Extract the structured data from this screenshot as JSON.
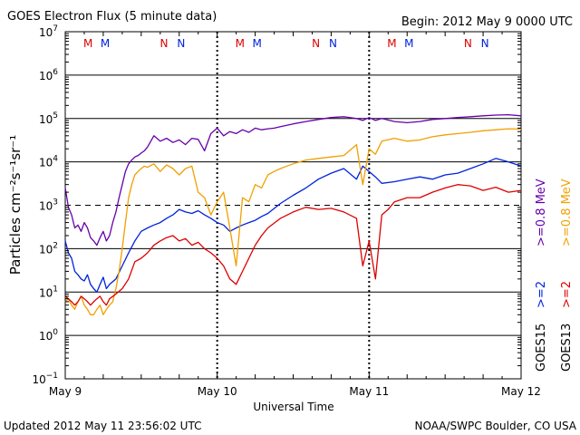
{
  "chart_data": {
    "type": "line",
    "title": "GOES Electron Flux (5 minute data)",
    "begin_label": "Begin: 2012 May 9 0000 UTC",
    "xlabel": "Universal Time",
    "ylabel": "Particles cm⁻²s⁻¹sr⁻¹",
    "y_scale": "log",
    "ylim": [
      0.1,
      10000000
    ],
    "y_ticks": [
      {
        "base": "10",
        "exp": "7",
        "value": 10000000
      },
      {
        "base": "10",
        "exp": "6",
        "value": 1000000
      },
      {
        "base": "10",
        "exp": "5",
        "value": 100000
      },
      {
        "base": "10",
        "exp": "4",
        "value": 10000
      },
      {
        "base": "10",
        "exp": "3",
        "value": 1000
      },
      {
        "base": "10",
        "exp": "2",
        "value": 100
      },
      {
        "base": "10",
        "exp": "1",
        "value": 10
      },
      {
        "base": "10",
        "exp": "0",
        "value": 1
      },
      {
        "base": "10",
        "exp": "−1",
        "value": 0.1
      }
    ],
    "x_unit": "hours since 2012 May 9 0000 UTC",
    "xlim": [
      0,
      72
    ],
    "x_ticks": [
      {
        "label": "May 9",
        "value": 0
      },
      {
        "label": "May 10",
        "value": 24
      },
      {
        "label": "May 11",
        "value": 48
      },
      {
        "label": "May 12",
        "value": 72
      }
    ],
    "threshold": 1000,
    "markers": [
      {
        "letter": "M",
        "sat": "GOES13",
        "color": "#dd0000",
        "x": 3.6
      },
      {
        "letter": "M",
        "sat": "GOES15",
        "color": "#0022dd",
        "x": 6.3
      },
      {
        "letter": "N",
        "sat": "GOES13",
        "color": "#dd0000",
        "x": 15.6
      },
      {
        "letter": "N",
        "sat": "GOES15",
        "color": "#0022dd",
        "x": 18.3
      },
      {
        "letter": "M",
        "sat": "GOES13",
        "color": "#dd0000",
        "x": 27.6
      },
      {
        "letter": "M",
        "sat": "GOES15",
        "color": "#0022dd",
        "x": 30.3
      },
      {
        "letter": "N",
        "sat": "GOES13",
        "color": "#dd0000",
        "x": 39.6
      },
      {
        "letter": "N",
        "sat": "GOES15",
        "color": "#0022dd",
        "x": 42.3
      },
      {
        "letter": "M",
        "sat": "GOES13",
        "color": "#dd0000",
        "x": 51.6
      },
      {
        "letter": "M",
        "sat": "GOES15",
        "color": "#0022dd",
        "x": 54.3
      },
      {
        "letter": "N",
        "sat": "GOES13",
        "color": "#dd0000",
        "x": 63.6
      },
      {
        "letter": "N",
        "sat": "GOES15",
        "color": "#0022dd",
        "x": 66.3
      }
    ],
    "series": [
      {
        "name": ">=0.8 MeV",
        "satellite": "GOES15",
        "color": "#6600aa",
        "x": [
          0,
          0.5,
          1,
          1.5,
          2,
          2.5,
          3,
          3.5,
          4,
          4.5,
          5,
          5.5,
          6,
          6.5,
          7,
          7.5,
          8,
          8.5,
          9,
          9.5,
          10,
          10.5,
          11,
          11.5,
          12,
          12.5,
          13,
          14,
          15,
          16,
          17,
          18,
          19,
          20,
          21,
          22,
          23,
          24,
          25,
          26,
          27,
          28,
          29,
          30,
          31,
          32,
          33,
          34,
          35,
          36,
          38,
          40,
          42,
          44,
          46,
          47,
          48,
          49,
          50,
          52,
          54,
          56,
          58,
          60,
          62,
          64,
          66,
          68,
          70,
          72
        ],
        "y": [
          2500,
          900,
          600,
          300,
          350,
          250,
          400,
          300,
          180,
          150,
          120,
          180,
          250,
          150,
          200,
          400,
          700,
          1500,
          3000,
          6000,
          9000,
          11000,
          13000,
          14000,
          16000,
          18000,
          22000,
          40000,
          30000,
          35000,
          28000,
          32000,
          25000,
          35000,
          33000,
          18000,
          45000,
          60000,
          40000,
          50000,
          45000,
          55000,
          48000,
          60000,
          55000,
          58000,
          60000,
          65000,
          70000,
          75000,
          85000,
          95000,
          105000,
          110000,
          100000,
          90000,
          105000,
          90000,
          100000,
          85000,
          80000,
          85000,
          95000,
          100000,
          105000,
          110000,
          115000,
          120000,
          122000,
          115000
        ]
      },
      {
        "name": ">=2 MeV",
        "satellite": "GOES15",
        "color": "#0022dd",
        "x": [
          0,
          0.5,
          1,
          1.5,
          2,
          2.5,
          3,
          3.5,
          4,
          4.5,
          5,
          5.5,
          6,
          6.5,
          7,
          8,
          9,
          10,
          11,
          12,
          13,
          14,
          15,
          16,
          17,
          18,
          19,
          20,
          21,
          22,
          23,
          24,
          25,
          26,
          27,
          28,
          29,
          30,
          31,
          32,
          34,
          36,
          38,
          40,
          42,
          44,
          46,
          47,
          48,
          49,
          50,
          52,
          54,
          56,
          58,
          60,
          62,
          64,
          66,
          68,
          70,
          72
        ],
        "y": [
          150,
          80,
          60,
          30,
          25,
          20,
          18,
          25,
          15,
          12,
          10,
          15,
          22,
          12,
          15,
          20,
          40,
          80,
          150,
          250,
          300,
          350,
          400,
          500,
          600,
          800,
          700,
          650,
          750,
          600,
          500,
          400,
          350,
          250,
          300,
          350,
          400,
          450,
          550,
          650,
          1100,
          1700,
          2500,
          4000,
          5500,
          7000,
          4000,
          8000,
          6000,
          4500,
          3200,
          3500,
          4000,
          4500,
          4000,
          5000,
          5500,
          7000,
          9000,
          12000,
          10000,
          8000
        ]
      },
      {
        "name": ">=0.8 MeV",
        "satellite": "GOES13",
        "color": "#f0a000",
        "x": [
          0,
          0.5,
          1,
          1.5,
          2,
          2.5,
          3,
          3.5,
          4,
          4.5,
          5,
          5.5,
          6,
          6.5,
          7,
          7.5,
          8,
          8.5,
          9,
          9.5,
          10,
          10.5,
          11,
          11.5,
          12,
          12.5,
          13,
          14,
          15,
          16,
          17,
          18,
          19,
          20,
          21,
          22,
          23,
          24,
          25,
          26,
          27,
          28,
          29,
          30,
          31,
          32,
          33,
          34,
          35,
          36,
          38,
          40,
          42,
          44,
          46,
          47,
          48,
          49,
          50,
          52,
          54,
          56,
          58,
          60,
          62,
          64,
          66,
          68,
          70,
          72
        ],
        "y": [
          6,
          7,
          5,
          4,
          6,
          8,
          5,
          4,
          3,
          3,
          4,
          5,
          3,
          4,
          5,
          6,
          12,
          30,
          100,
          400,
          1500,
          3000,
          5000,
          6000,
          7000,
          8000,
          7500,
          9000,
          6000,
          8500,
          7000,
          5000,
          7000,
          8000,
          2000,
          1500,
          600,
          1200,
          2000,
          300,
          40,
          1500,
          1200,
          3000,
          2500,
          5000,
          6000,
          7000,
          8000,
          9000,
          11000,
          12000,
          13000,
          14000,
          25000,
          3000,
          20000,
          15000,
          30000,
          35000,
          30000,
          32000,
          38000,
          42000,
          45000,
          48000,
          52000,
          55000,
          58000,
          57000
        ]
      },
      {
        "name": ">=2 MeV",
        "satellite": "GOES13",
        "color": "#dd0000",
        "x": [
          0,
          0.5,
          1,
          1.5,
          2,
          2.5,
          3,
          3.5,
          4,
          4.5,
          5,
          5.5,
          6,
          6.5,
          7,
          8,
          9,
          10,
          11,
          12,
          13,
          14,
          15,
          16,
          17,
          18,
          19,
          20,
          21,
          22,
          23,
          24,
          25,
          26,
          27,
          28,
          29,
          30,
          31,
          32,
          34,
          36,
          38,
          40,
          42,
          44,
          46,
          47,
          48,
          49,
          50,
          51,
          52,
          54,
          56,
          58,
          60,
          62,
          64,
          66,
          68,
          70,
          72
        ],
        "y": [
          8,
          7,
          6,
          5,
          6,
          8,
          7,
          6,
          5,
          6,
          7,
          8,
          6,
          5,
          7,
          9,
          12,
          20,
          50,
          60,
          80,
          120,
          150,
          180,
          200,
          150,
          170,
          120,
          140,
          100,
          80,
          60,
          40,
          20,
          15,
          30,
          60,
          120,
          200,
          300,
          500,
          700,
          900,
          800,
          850,
          700,
          500,
          40,
          150,
          20,
          600,
          800,
          1200,
          1500,
          1500,
          2000,
          2500,
          3000,
          2800,
          2200,
          2600,
          2000,
          2200
        ]
      }
    ]
  },
  "legend": {
    "goes15": {
      "sat": "GOES15",
      "low": ">=0.8 MeV",
      "high": ">=2",
      "color_low": "#6600aa",
      "color_high": "#0022dd"
    },
    "goes13": {
      "sat": "GOES13",
      "low": ">=0.8 MeV",
      "high": ">=2",
      "color_low": "#f0a000",
      "color_high": "#dd0000"
    }
  },
  "footer": {
    "updated": "Updated 2012 May 11 23:56:02 UTC",
    "credit": "NOAA/SWPC Boulder, CO USA"
  }
}
